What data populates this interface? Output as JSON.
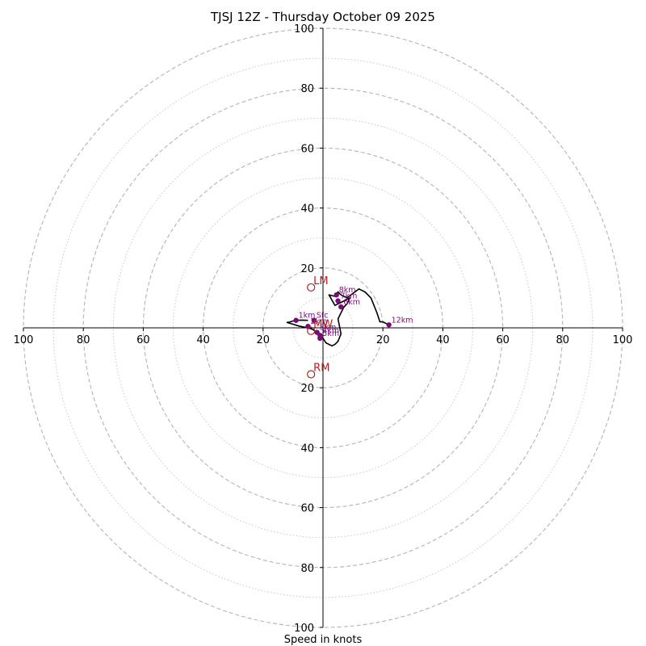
{
  "chart_data": {
    "type": "hodograph",
    "title": "TJSJ 12Z - Thursday October 09 2025",
    "xlabel": "Speed in knots",
    "range": [
      -100,
      100
    ],
    "major_rings": [
      20,
      40,
      60,
      80,
      100
    ],
    "minor_rings": [
      10,
      30,
      50,
      70,
      90
    ],
    "axis_tick_labels": [
      "100",
      "80",
      "60",
      "40",
      "20",
      "20",
      "40",
      "60",
      "80",
      "100"
    ],
    "y_tick_labels_top": [
      "20",
      "40",
      "60",
      "80",
      "100"
    ],
    "y_tick_labels_bottom": [
      "20",
      "40",
      "60",
      "80",
      "100"
    ],
    "hodograph_trace": {
      "u": [
        -5,
        -7,
        -9,
        -10,
        -11,
        -12,
        -10,
        -8,
        -6,
        -4,
        -3,
        -2,
        -1,
        0,
        1,
        3,
        4,
        5,
        6,
        5,
        6,
        7,
        8,
        9,
        6,
        4,
        2,
        4,
        5,
        6,
        8,
        12,
        14,
        16,
        18,
        19,
        20,
        22
      ],
      "v": [
        2.5,
        2.6,
        2.5,
        2.3,
        2.0,
        1.8,
        1.2,
        0.6,
        0.2,
        -0.3,
        -0.8,
        -1.5,
        -2.5,
        -3.5,
        -5.0,
        -6.0,
        -5.5,
        -4.5,
        -2.0,
        3.0,
        5.0,
        7.0,
        8.0,
        10.0,
        8.5,
        7.5,
        11.0,
        10.5,
        12.0,
        11.0,
        10.0,
        13.0,
        12.0,
        10.0,
        5.0,
        2.0,
        2.0,
        1.0
      ],
      "color": "#000000"
    },
    "levels": [
      {
        "label": "Sfc",
        "u": -3,
        "v": 2.5
      },
      {
        "label": "1km",
        "u": -9,
        "v": 2.5
      },
      {
        "label": "2km",
        "u": -5,
        "v": 0.5
      },
      {
        "label": "3km",
        "u": -2,
        "v": -1.5
      },
      {
        "label": "4km",
        "u": -1,
        "v": -2.5
      },
      {
        "label": "5km",
        "u": -1,
        "v": -3.5
      },
      {
        "label": "6km",
        "u": 6,
        "v": 7.0
      },
      {
        "label": "7km",
        "u": 5,
        "v": 9.0
      },
      {
        "label": "8km",
        "u": 4.5,
        "v": 11.0
      },
      {
        "label": "12km",
        "u": 22,
        "v": 1.0
      }
    ],
    "level_color": "#7a0a7a",
    "storm_motion": [
      {
        "label": "LM",
        "u": -4,
        "v": 13.5
      },
      {
        "label": "RM",
        "u": -4,
        "v": -15.5
      },
      {
        "label": "MW",
        "u": -4,
        "v": -1.0
      }
    ],
    "storm_motion_color": "#b22222"
  }
}
